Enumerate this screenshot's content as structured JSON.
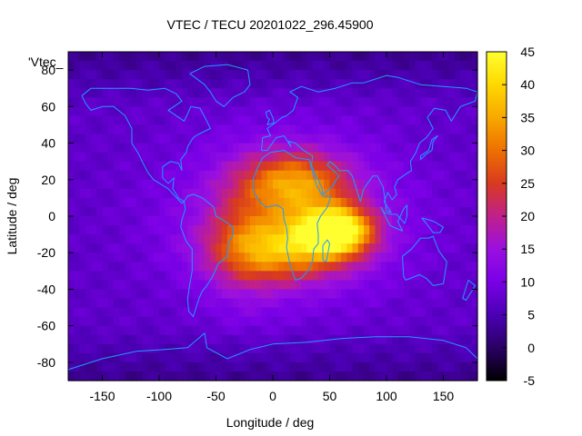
{
  "chart_data": {
    "type": "heatmap",
    "title": "VTEC / TECU 20201022_296.45900",
    "xlabel": "Longitude / deg",
    "ylabel": "Latitude / deg",
    "xlim": [
      -180,
      180
    ],
    "ylim": [
      -90,
      90
    ],
    "x_ticks": [
      -150,
      -100,
      -50,
      0,
      50,
      100,
      150
    ],
    "y_ticks": [
      -80,
      -60,
      -40,
      -20,
      0,
      20,
      40,
      60,
      80
    ],
    "legend_entry": "'Vtec_",
    "colorbar": {
      "range": [
        -5,
        45
      ],
      "ticks": [
        -5,
        0,
        5,
        10,
        15,
        20,
        25,
        30,
        35,
        40,
        45
      ],
      "palette": [
        "#000000",
        "#2a0064",
        "#4b00b4",
        "#7a00e6",
        "#9a10e0",
        "#c0208a",
        "#d83a20",
        "#ee7000",
        "#f8a800",
        "#ffd800",
        "#ffff30"
      ]
    },
    "field": {
      "background_tecu": 7,
      "features": [
        {
          "name": "equatorial-peak",
          "lon": 55,
          "lat": -8,
          "amp_tecu": 36,
          "sig_lon": 22,
          "sig_lat": 9
        },
        {
          "name": "north-crest",
          "lon": 20,
          "lat": 18,
          "amp_tecu": 20,
          "sig_lon": 32,
          "sig_lat": 12
        },
        {
          "name": "south-crest",
          "lon": 10,
          "lat": -18,
          "amp_tecu": 20,
          "sig_lon": 40,
          "sig_lat": 12
        },
        {
          "name": "dayside-broad",
          "lon": 15,
          "lat": 0,
          "amp_tecu": 10,
          "sig_lon": 70,
          "sig_lat": 30
        },
        {
          "name": "atlantic-tail",
          "lon": -25,
          "lat": -15,
          "amp_tecu": 7,
          "sig_lon": 25,
          "sig_lat": 25
        }
      ]
    }
  }
}
